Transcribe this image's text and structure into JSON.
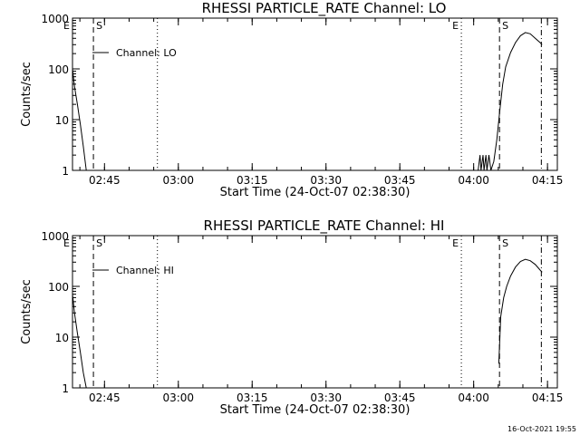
{
  "footer_timestamp": "16-Oct-2021 19:55",
  "chart_data": [
    {
      "type": "line",
      "title": "RHESSI PARTICLE_RATE Channel: LO",
      "xlabel": "Start Time (24-Oct-07 02:38:30)",
      "ylabel": "Counts/sec",
      "yscale": "log",
      "ylim": [
        1,
        1000
      ],
      "xlim_minutes_after_start": [
        0,
        98.5
      ],
      "x_ticks": [
        "02:45",
        "03:00",
        "03:15",
        "03:30",
        "03:45",
        "04:00",
        "04:15"
      ],
      "y_ticks": [
        "1",
        "10",
        "100",
        "1000"
      ],
      "legend": "Channel: LO",
      "legend_position": "top-left",
      "grid": false,
      "markers": [
        {
          "label": "E",
          "time": "02:38:30",
          "style": "dotted"
        },
        {
          "label": "S",
          "time": "02:42:45",
          "style": "dashed"
        },
        {
          "label": "",
          "time": "02:55:45",
          "style": "dotted"
        },
        {
          "label": "E",
          "time": "03:57:30",
          "style": "dotted"
        },
        {
          "label": "S",
          "time": "04:05:15",
          "style": "dashed"
        },
        {
          "label": "",
          "time": "04:13:45",
          "style": "dashdot"
        }
      ],
      "series": [
        {
          "values": [
            {
              "t": "02:38:30",
              "y": 100
            },
            {
              "t": "02:38:54",
              "y": 45
            },
            {
              "t": "02:39:30",
              "y": 20
            },
            {
              "t": "02:40:06",
              "y": 8
            },
            {
              "t": "02:40:42",
              "y": 3
            },
            {
              "t": "02:41:18",
              "y": 1
            }
          ]
        },
        {
          "values": [
            {
              "t": "04:00:54",
              "y": 1
            },
            {
              "t": "04:01:18",
              "y": 2
            },
            {
              "t": "04:01:30",
              "y": 1
            },
            {
              "t": "04:01:54",
              "y": 2
            },
            {
              "t": "04:02:06",
              "y": 1
            },
            {
              "t": "04:02:30",
              "y": 2
            },
            {
              "t": "04:02:42",
              "y": 1
            },
            {
              "t": "04:03:06",
              "y": 2
            },
            {
              "t": "04:03:30",
              "y": 1
            },
            {
              "t": "04:04:06",
              "y": 1.5
            },
            {
              "t": "04:04:42",
              "y": 4
            },
            {
              "t": "04:05:18",
              "y": 15
            },
            {
              "t": "04:05:54",
              "y": 50
            },
            {
              "t": "04:06:30",
              "y": 110
            },
            {
              "t": "04:07:30",
              "y": 210
            },
            {
              "t": "04:08:30",
              "y": 330
            },
            {
              "t": "04:09:30",
              "y": 450
            },
            {
              "t": "04:10:30",
              "y": 520
            },
            {
              "t": "04:11:30",
              "y": 490
            },
            {
              "t": "04:12:30",
              "y": 400
            },
            {
              "t": "04:13:30",
              "y": 330
            },
            {
              "t": "04:13:54",
              "y": 300
            }
          ]
        }
      ]
    },
    {
      "type": "line",
      "title": "RHESSI PARTICLE_RATE Channel: HI",
      "xlabel": "Start Time (24-Oct-07 02:38:30)",
      "ylabel": "Counts/sec",
      "yscale": "log",
      "ylim": [
        1,
        1000
      ],
      "xlim_minutes_after_start": [
        0,
        98.5
      ],
      "x_ticks": [
        "02:45",
        "03:00",
        "03:15",
        "03:30",
        "03:45",
        "04:00",
        "04:15"
      ],
      "y_ticks": [
        "1",
        "10",
        "100",
        "1000"
      ],
      "legend": "Channel: HI",
      "legend_position": "top-left",
      "grid": false,
      "markers": [
        {
          "label": "E",
          "time": "02:38:30",
          "style": "dotted"
        },
        {
          "label": "S",
          "time": "02:42:45",
          "style": "dashed"
        },
        {
          "label": "",
          "time": "02:55:45",
          "style": "dotted"
        },
        {
          "label": "E",
          "time": "03:57:30",
          "style": "dotted"
        },
        {
          "label": "S",
          "time": "04:05:15",
          "style": "dashed"
        },
        {
          "label": "",
          "time": "04:13:45",
          "style": "dashdot"
        }
      ],
      "series": [
        {
          "values": [
            {
              "t": "02:38:30",
              "y": 70
            },
            {
              "t": "02:38:54",
              "y": 30
            },
            {
              "t": "02:39:30",
              "y": 12
            },
            {
              "t": "02:40:06",
              "y": 5
            },
            {
              "t": "02:40:42",
              "y": 2
            },
            {
              "t": "02:41:18",
              "y": 1
            }
          ]
        },
        {
          "values": [
            {
              "t": "04:05:06",
              "y": 3
            },
            {
              "t": "04:05:30",
              "y": 25
            },
            {
              "t": "04:06:06",
              "y": 60
            },
            {
              "t": "04:06:42",
              "y": 100
            },
            {
              "t": "04:07:30",
              "y": 160
            },
            {
              "t": "04:08:30",
              "y": 240
            },
            {
              "t": "04:09:30",
              "y": 310
            },
            {
              "t": "04:10:30",
              "y": 340
            },
            {
              "t": "04:11:30",
              "y": 320
            },
            {
              "t": "04:12:30",
              "y": 270
            },
            {
              "t": "04:13:30",
              "y": 210
            },
            {
              "t": "04:13:54",
              "y": 190
            }
          ]
        }
      ]
    }
  ]
}
